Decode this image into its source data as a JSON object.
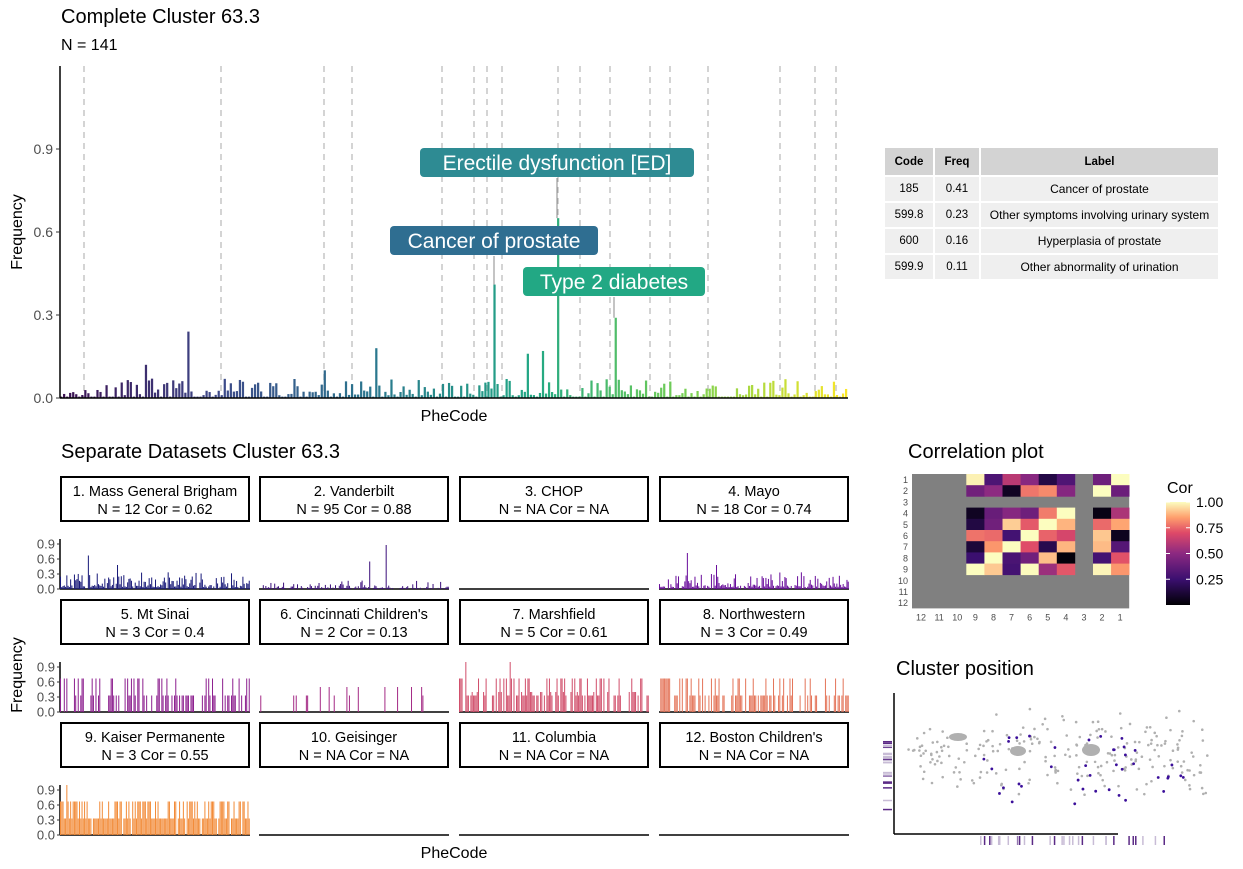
{
  "main": {
    "title": "Complete Cluster 63.3",
    "subtitle": "N = 141",
    "ylabel": "Frequency",
    "xlabel": "PheCode"
  },
  "separate": {
    "title": "Separate Datasets Cluster 63.3",
    "ylabel": "Frequency",
    "xlabel": "PheCode"
  },
  "correlation": {
    "title": "Correlation plot",
    "legend_title": "Cor"
  },
  "position": {
    "title": "Cluster position"
  },
  "table": {
    "headers": [
      "Code",
      "Freq",
      "Label"
    ],
    "rows": [
      [
        "185",
        "0.41",
        "Cancer of prostate"
      ],
      [
        "599.8",
        "0.23",
        "Other symptoms involving urinary system"
      ],
      [
        "600",
        "0.16",
        "Hyperplasia of prostate"
      ],
      [
        "599.9",
        "0.11",
        "Other abnormality of urination"
      ]
    ]
  },
  "chart_data": [
    {
      "type": "bar",
      "title": "Complete Cluster 63.3",
      "subtitle": "N = 141",
      "xlabel": "PheCode",
      "ylabel": "Frequency",
      "ylim": [
        0,
        1.2
      ],
      "yticks": [
        0.0,
        0.3,
        0.6,
        0.9
      ],
      "ytick_labels": [
        "0.0",
        "0.3",
        "0.6",
        "0.9"
      ],
      "grid": "vertical dashed separators between PheCode categories",
      "gradient": [
        "#3b0f50",
        "#3e4a89",
        "#2a788e",
        "#22a884",
        "#7ad151",
        "#fde725"
      ],
      "annotations": [
        {
          "label": "Erectile dysfunction [ED]",
          "value": 0.65,
          "color": "#2e8b93"
        },
        {
          "label": "Cancer of prostate",
          "value": 0.41,
          "color": "#2f6e91"
        },
        {
          "label": "Type 2 diabetes",
          "value": 0.29,
          "color": "#22a884"
        }
      ],
      "highlight_values": [
        0.41,
        0.65,
        0.29,
        0.23,
        0.18,
        0.24,
        0.17,
        0.16
      ]
    },
    {
      "type": "bar",
      "title": "Separate Datasets Cluster 63.3",
      "xlabel": "PheCode",
      "ylabel": "Frequency",
      "ylim": [
        0,
        1.0
      ],
      "yticks": [
        0.0,
        0.3,
        0.6,
        0.9
      ],
      "ytick_labels": [
        "0.0",
        "0.3",
        "0.6",
        "0.9"
      ],
      "panels": [
        {
          "name": "1. Mass General Brigham",
          "stat": "N = 12 Cor = 0.62",
          "color": "#1a1b7a",
          "max": 0.67,
          "style": "mixed"
        },
        {
          "name": "2. Vanderbilt",
          "stat": "N = 95 Cor = 0.88",
          "color": "#3d117d",
          "max": 0.88,
          "style": "low"
        },
        {
          "name": "3. CHOP",
          "stat": "N = NA Cor = NA",
          "color": "#000000",
          "max": 0,
          "style": "none"
        },
        {
          "name": "4. Mayo",
          "stat": "N = 18 Cor = 0.74",
          "color": "#6a0f9c",
          "max": 0.72,
          "style": "mixed"
        },
        {
          "name": "5. Mt Sinai",
          "stat": "N = 3 Cor = 0.4",
          "color": "#8e2290",
          "max": 0.67,
          "style": "discrete"
        },
        {
          "name": "6. Cincinnati Children's",
          "stat": "N = 2 Cor = 0.13",
          "color": "#a52d87",
          "max": 0.5,
          "style": "sparse"
        },
        {
          "name": "7. Marshfield",
          "stat": "N = 5 Cor = 0.61",
          "color": "#d1506c",
          "max": 1.0,
          "style": "discrete"
        },
        {
          "name": "8. Northwestern",
          "stat": "N = 3 Cor = 0.49",
          "color": "#e4765b",
          "max": 0.67,
          "style": "discrete"
        },
        {
          "name": "9. Kaiser Permanente",
          "stat": "N = 3 Cor = 0.55",
          "color": "#f28c3a",
          "max": 1.0,
          "style": "discrete"
        },
        {
          "name": "10. Geisinger",
          "stat": "N = NA Cor = NA",
          "color": "#000000",
          "max": 0,
          "style": "none"
        },
        {
          "name": "11. Columbia",
          "stat": "N = NA Cor = NA",
          "color": "#000000",
          "max": 0,
          "style": "none"
        },
        {
          "name": "12. Boston Children's",
          "stat": "N = NA Cor = NA",
          "color": "#000000",
          "max": 0,
          "style": "none"
        }
      ]
    },
    {
      "type": "heatmap",
      "title": "Correlation plot",
      "row_labels": [
        "1",
        "2",
        "3",
        "4",
        "5",
        "6",
        "7",
        "8",
        "9",
        "10",
        "11",
        "12"
      ],
      "col_labels": [
        "12",
        "11",
        "10",
        "9",
        "8",
        "7",
        "6",
        "5",
        "4",
        "3",
        "2",
        "1"
      ],
      "available": [
        "1",
        "2",
        "4",
        "5",
        "6",
        "7",
        "8",
        "9"
      ],
      "legend": {
        "title": "Cor",
        "ticks": [
          "1.00",
          "0.75",
          "0.50",
          "0.25"
        ],
        "range": [
          0,
          1
        ]
      },
      "na_color": "#808080"
    },
    {
      "type": "scatter",
      "title": "Cluster position",
      "background_color": "#b0b0b0",
      "cluster_color": "#3b0f9a"
    }
  ]
}
